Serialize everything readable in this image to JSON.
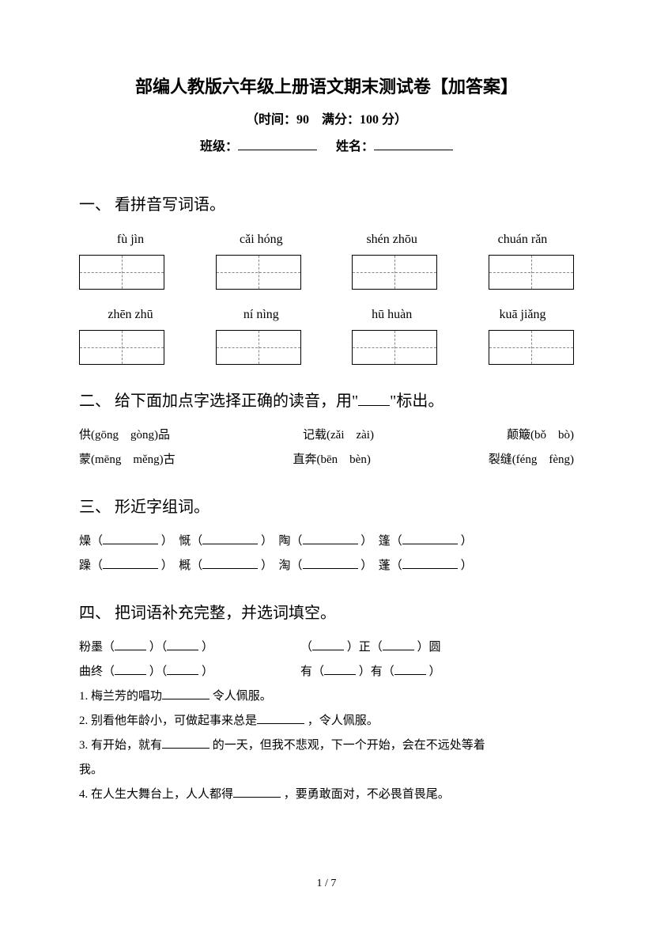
{
  "header": {
    "title": "部编人教版六年级上册语文期末测试卷【加答案】",
    "subtitle": "（时间：90　满分：100 分）",
    "class_label": "班级：",
    "name_label": "姓名："
  },
  "section1": {
    "heading": "一、 看拼音写词语。",
    "pinyin_row1": [
      "fù  jìn",
      "cǎi   hóng",
      "shén zhōu",
      "chuán rǎn"
    ],
    "pinyin_row2": [
      "zhēn zhū",
      "ní nìng",
      "hū   huàn",
      "kuā jiǎng"
    ]
  },
  "section2": {
    "heading": "二、 给下面加点字选择正确的读音，用\"",
    "heading_suffix": "\"标出。",
    "row1": [
      "供(gōng　gòng)品",
      "记载(zǎi　zài)",
      "颠簸(bǒ　bò)"
    ],
    "row2": [
      "蒙(mēng　měng)古",
      "直奔(bēn　bèn)",
      "裂缝(féng　fèng)"
    ]
  },
  "section3": {
    "heading": "三、 形近字组词。",
    "row1": [
      "燥（",
      "）　慨（",
      "）　陶（",
      "）　篷（",
      "）"
    ],
    "row2": [
      "躁（",
      "）　概（",
      "）　淘（",
      "）　蓬（",
      "）"
    ]
  },
  "section4": {
    "heading": "四、 把词语补充完整，并选词填空。",
    "line1_left_a": "粉墨（",
    "line1_left_b": "）（",
    "line1_left_c": "）",
    "line1_right_a": "（",
    "line1_right_b": "）正（",
    "line1_right_c": "）圆",
    "line2_left_a": "曲终（",
    "line2_left_b": "）（",
    "line2_left_c": "）",
    "line2_right_a": "有（",
    "line2_right_b": "）有（",
    "line2_right_c": "）",
    "q1": "1. 梅兰芳的唱功",
    "q1_suffix": "令人佩服。",
    "q2": "2. 别看他年龄小，可做起事来总是",
    "q2_suffix": "，令人佩服。",
    "q3": "3. 有开始，就有",
    "q3_mid": "的一天，但我不悲观，下一个开始，会在不远处等着",
    "q3_suffix": "我。",
    "q4": "4. 在人生大舞台上，人人都得",
    "q4_suffix": "，要勇敢面对，不必畏首畏尾。"
  },
  "footer": {
    "page": "1 / 7"
  },
  "colors": {
    "text": "#000000",
    "background": "#ffffff",
    "dashed": "#888888"
  }
}
